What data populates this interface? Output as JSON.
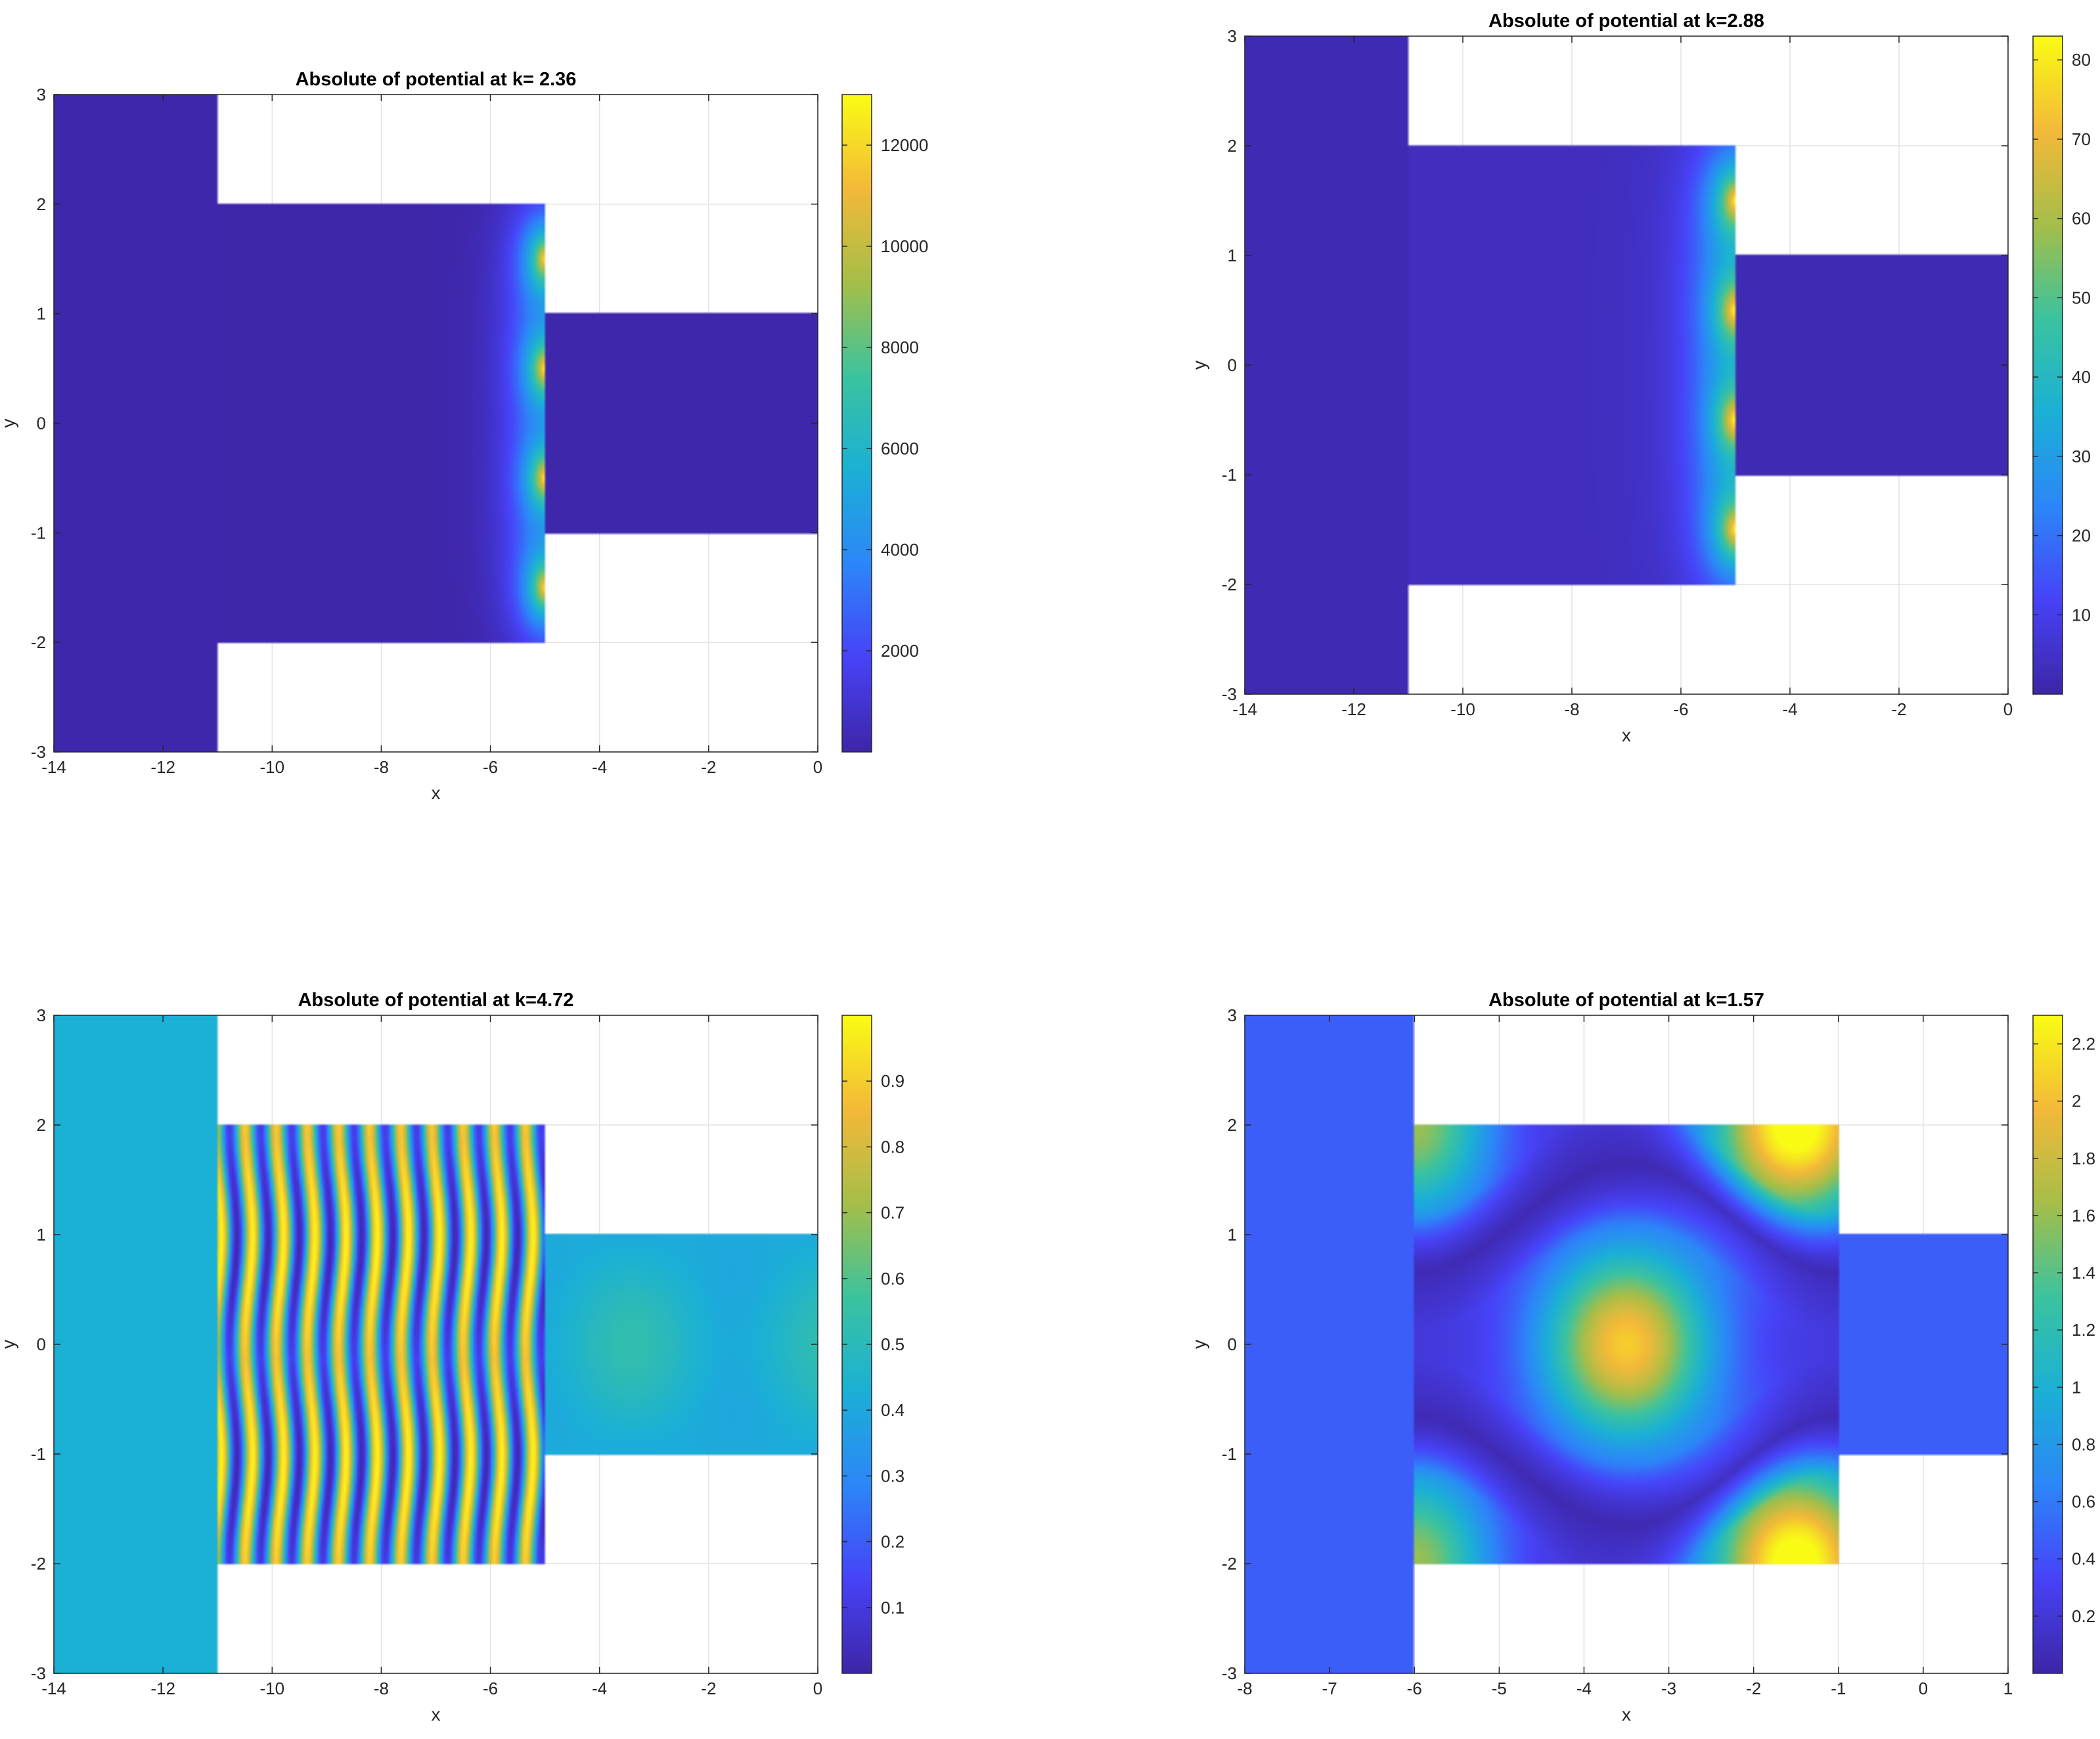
{
  "figure": {
    "background": "#ffffff",
    "colormap": "parula",
    "colormap_stops": [
      "#3e26a8",
      "#4743f8",
      "#2c87f8",
      "#1bb0d6",
      "#3bc39f",
      "#a5be49",
      "#f3b939",
      "#f9fb15"
    ]
  },
  "chart_data": [
    {
      "type": "heatmap",
      "title": "Absolute of potential at k= 2.36",
      "xlabel": "x",
      "ylabel": "y",
      "xlim": [
        -14,
        0
      ],
      "ylim": [
        -3,
        3
      ],
      "xticks": [
        "-14",
        "-12",
        "-10",
        "-8",
        "-6",
        "-4",
        "-2",
        "0"
      ],
      "yticks": [
        "3",
        "2",
        "1",
        "0",
        "-1",
        "-2",
        "-3"
      ],
      "grid": true,
      "regions": [
        {
          "name": "left",
          "x": [
            -14,
            -11
          ],
          "y": [
            -3,
            3
          ]
        },
        {
          "name": "middle",
          "x": [
            -11,
            -5
          ],
          "y": [
            -2,
            2
          ]
        },
        {
          "name": "right",
          "x": [
            -5,
            0
          ],
          "y": [
            -1,
            1
          ]
        }
      ],
      "colorbar": {
        "range": [
          0,
          13000
        ],
        "ticks": [
          "2000",
          "4000",
          "6000",
          "8000",
          "10000",
          "12000"
        ],
        "tick_values": [
          2000,
          4000,
          6000,
          8000,
          10000,
          12000
        ]
      },
      "field_notes": "uniform low values everywhere; peaks (~12000) along x=-5 edge of middle region at y=1.5, 0.5, -0.5, -1.5 region centers"
    },
    {
      "type": "heatmap",
      "title": "Absolute of potential at k=2.88",
      "xlabel": "x",
      "ylabel": "y",
      "xlim": [
        -14,
        0
      ],
      "ylim": [
        -3,
        3
      ],
      "xticks": [
        "-14",
        "-12",
        "-10",
        "-8",
        "-6",
        "-4",
        "-2",
        "0"
      ],
      "yticks": [
        "3",
        "2",
        "1",
        "0",
        "-1",
        "-2",
        "-3"
      ],
      "grid": true,
      "regions": [
        {
          "name": "left",
          "x": [
            -14,
            -11
          ],
          "y": [
            -3,
            3
          ]
        },
        {
          "name": "middle",
          "x": [
            -11,
            -5
          ],
          "y": [
            -2,
            2
          ]
        },
        {
          "name": "right",
          "x": [
            -5,
            0
          ],
          "y": [
            -1,
            1
          ]
        }
      ],
      "colorbar": {
        "range": [
          0,
          83
        ],
        "ticks": [
          "10",
          "20",
          "30",
          "40",
          "50",
          "60",
          "70",
          "80"
        ],
        "tick_values": [
          10,
          20,
          30,
          40,
          50,
          60,
          70,
          80
        ]
      },
      "field_notes": "low values; peaks (~80) along x=-5 edge of middle region"
    },
    {
      "type": "heatmap",
      "title": "Absolute of potential at k=4.72",
      "xlabel": "x",
      "ylabel": "y",
      "xlim": [
        -14,
        0
      ],
      "ylim": [
        -3,
        3
      ],
      "xticks": [
        "-14",
        "-12",
        "-10",
        "-8",
        "-6",
        "-4",
        "-2",
        "0"
      ],
      "yticks": [
        "3",
        "2",
        "1",
        "0",
        "-1",
        "-2",
        "-3"
      ],
      "grid": true,
      "regions": [
        {
          "name": "left",
          "x": [
            -14,
            -11
          ],
          "y": [
            -3,
            3
          ]
        },
        {
          "name": "middle",
          "x": [
            -11,
            -5
          ],
          "y": [
            -2,
            2
          ]
        },
        {
          "name": "right",
          "x": [
            -5,
            0
          ],
          "y": [
            -1,
            1
          ]
        }
      ],
      "colorbar": {
        "range": [
          0,
          1
        ],
        "ticks": [
          "0.1",
          "0.2",
          "0.3",
          "0.4",
          "0.5",
          "0.6",
          "0.7",
          "0.8",
          "0.9"
        ],
        "tick_values": [
          0.1,
          0.2,
          0.3,
          0.4,
          0.5,
          0.6,
          0.7,
          0.8,
          0.9
        ]
      },
      "field_notes": "left region uniform ~0.43; middle region vertical standing-wave stripes 0 to 1; right region ~0.45-0.5"
    },
    {
      "type": "heatmap",
      "title": "Absolute of potential at k=1.57",
      "xlabel": "x",
      "ylabel": "y",
      "xlim": [
        -8,
        1
      ],
      "ylim": [
        -3,
        3
      ],
      "xticks": [
        "-8",
        "-7",
        "-6",
        "-5",
        "-4",
        "-3",
        "-2",
        "-1",
        "0",
        "1"
      ],
      "yticks": [
        "3",
        "2",
        "1",
        "0",
        "-1",
        "-2",
        "-3"
      ],
      "grid": true,
      "regions": [
        {
          "name": "left",
          "x": [
            -8,
            -6
          ],
          "y": [
            -3,
            3
          ]
        },
        {
          "name": "middle",
          "x": [
            -6,
            -1
          ],
          "y": [
            -2,
            2
          ]
        },
        {
          "name": "right",
          "x": [
            -1,
            1
          ],
          "y": [
            -1,
            1
          ]
        }
      ],
      "colorbar": {
        "range": [
          0,
          2.3
        ],
        "ticks": [
          "0.2",
          "0.4",
          "0.6",
          "0.8",
          "1",
          "1.2",
          "1.4",
          "1.6",
          "1.8",
          "2",
          "2.2"
        ],
        "tick_values": [
          0.2,
          0.4,
          0.6,
          0.8,
          1.0,
          1.2,
          1.4,
          1.6,
          1.8,
          2.0,
          2.2
        ]
      },
      "field_notes": "left region uniform ~0.45; middle region cavity mode with peaks ~1.9 at (-3.5,0), ~2.25 at (-1.5,+/-2), ~1.4 at (-6,+/-2); right region ~0.45"
    }
  ]
}
